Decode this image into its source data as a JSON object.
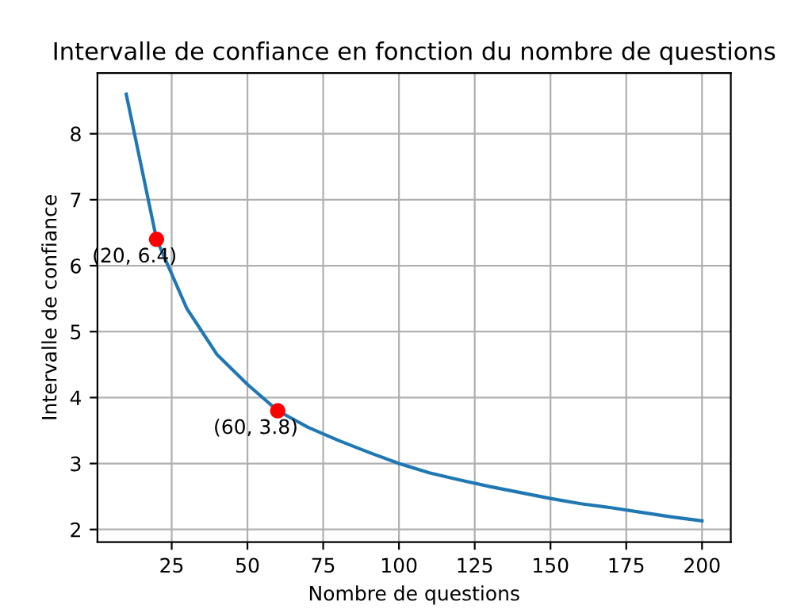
{
  "chart_data": {
    "type": "line",
    "title": "Intervalle de confiance en fonction du nombre de questions",
    "xlabel": "Nombre de questions",
    "ylabel": "Intervalle de confiance",
    "series": [
      {
        "color": "#1f77b4",
        "x": [
          10,
          20,
          30,
          40,
          50,
          60,
          70,
          80,
          90,
          100,
          110,
          120,
          130,
          140,
          150,
          160,
          170,
          180,
          190,
          200
        ],
        "values": [
          8.6,
          6.4,
          5.35,
          4.65,
          4.2,
          3.8,
          3.55,
          3.35,
          3.17,
          3.0,
          2.86,
          2.75,
          2.65,
          2.56,
          2.47,
          2.39,
          2.33,
          2.26,
          2.19,
          2.13
        ]
      },
      {
        "type": "scatter",
        "color": "#ff0000",
        "x": [
          20,
          60
        ],
        "values": [
          6.4,
          3.8
        ]
      }
    ],
    "annotations": [
      {
        "text": "(20, 6.4)",
        "x": 20,
        "y": 6.4
      },
      {
        "text": "(60, 3.8)",
        "x": 60,
        "y": 3.8
      }
    ],
    "xlim": [
      0.5,
      209.5
    ],
    "ylim": [
      1.81,
      8.92
    ],
    "xticks": [
      25,
      50,
      75,
      100,
      125,
      150,
      175,
      200
    ],
    "yticks": [
      2,
      3,
      4,
      5,
      6,
      7,
      8
    ],
    "grid": true
  }
}
